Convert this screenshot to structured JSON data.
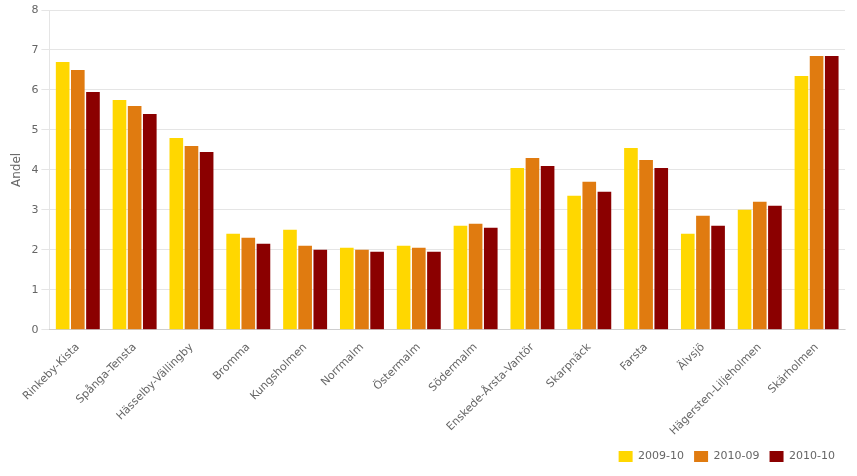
{
  "chart_data": {
    "type": "bar",
    "categories": [
      "Rinkeby-Kista",
      "Spånga-Tensta",
      "Hässelby-Vällingby",
      "Bromma",
      "Kungsholmen",
      "Norrmalm",
      "Östermalm",
      "Södermalm",
      "Enskede-Årsta-Vantör",
      "Skarpnäck",
      "Farsta",
      "Älvsjö",
      "Hägersten-Liljeholmen",
      "Skärholmen"
    ],
    "series": [
      {
        "name": "2009-10",
        "color": "#FFD700",
        "values": [
          6.7,
          5.75,
          4.8,
          2.4,
          2.5,
          2.05,
          2.1,
          2.6,
          4.05,
          3.35,
          4.55,
          2.4,
          3.0,
          6.35
        ]
      },
      {
        "name": "2010-09",
        "color": "#E07B10",
        "values": [
          6.5,
          5.6,
          4.6,
          2.3,
          2.1,
          2.0,
          2.05,
          2.65,
          4.3,
          3.7,
          4.25,
          2.85,
          3.2,
          6.85
        ]
      },
      {
        "name": "2010-10",
        "color": "#8B0000",
        "values": [
          5.95,
          5.4,
          4.45,
          2.15,
          2.0,
          1.95,
          1.95,
          2.55,
          4.1,
          3.45,
          4.05,
          2.6,
          3.1,
          6.85
        ]
      }
    ],
    "ylabel": "Andel",
    "ylim": [
      0,
      8
    ],
    "yticks": [
      0,
      1,
      2,
      3,
      4,
      5,
      6,
      7,
      8
    ],
    "grid": true,
    "legend": "lower right"
  }
}
